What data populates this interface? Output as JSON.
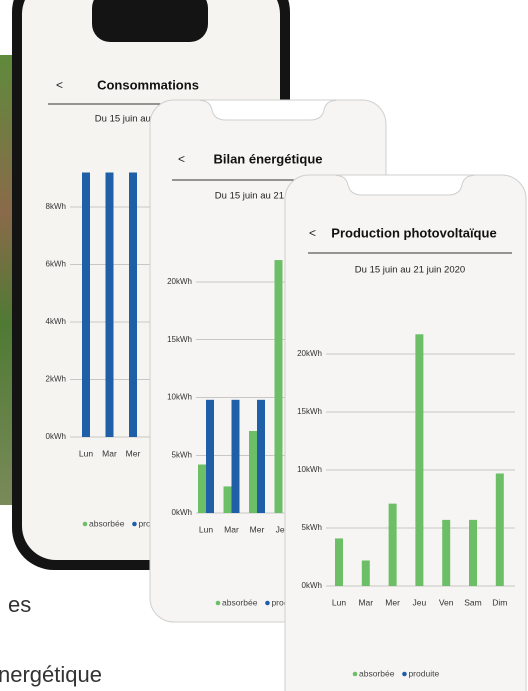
{
  "chart_data": [
    {
      "type": "bar",
      "title": "Consommations",
      "subtitle": "Du 15 juin au 21 juin 2020",
      "categories": [
        "Lun",
        "Mar",
        "Mer"
      ],
      "series": [
        {
          "name": "absorbée",
          "color": "#6dbf67",
          "values": [
            null,
            null,
            null
          ]
        },
        {
          "name": "produite",
          "color": "#1f5fa8",
          "values": [
            9.2,
            9.2,
            9.2
          ]
        }
      ],
      "ylim": [
        0,
        10
      ],
      "yticks": [
        {
          "value": 0,
          "label": "0kWh"
        },
        {
          "value": 2,
          "label": "2kWh"
        },
        {
          "value": 4,
          "label": "4kWh"
        },
        {
          "value": 6,
          "label": "6kWh"
        },
        {
          "value": 8,
          "label": "8kWh"
        }
      ],
      "grid": true
    },
    {
      "type": "bar",
      "title": "Bilan énergétique",
      "subtitle": "Du 15 juin au 21 juin 2020",
      "categories": [
        "Lun",
        "Mar",
        "Mer",
        "Jeu"
      ],
      "series": [
        {
          "name": "absorbée",
          "color": "#6dbf67",
          "values": [
            4.2,
            2.3,
            7.1,
            21.9
          ]
        },
        {
          "name": "produite",
          "color": "#1f5fa8",
          "values": [
            9.8,
            9.8,
            9.8,
            null
          ]
        }
      ],
      "ylim": [
        0,
        24
      ],
      "yticks": [
        {
          "value": 0,
          "label": "0kWh"
        },
        {
          "value": 5,
          "label": "5kWh"
        },
        {
          "value": 10,
          "label": "10kWh"
        },
        {
          "value": 15,
          "label": "15kWh"
        },
        {
          "value": 20,
          "label": "20kWh"
        }
      ],
      "grid": true
    },
    {
      "type": "bar",
      "title": "Production photovoltaïque",
      "subtitle": "Du 15 juin au 21 juin 2020",
      "categories": [
        "Lun",
        "Mar",
        "Mer",
        "Jeu",
        "Ven",
        "Sam",
        "Dim"
      ],
      "series": [
        {
          "name": "absorbée",
          "color": "#6dbf67",
          "values": [
            4.1,
            2.2,
            7.1,
            21.7,
            5.7,
            5.7,
            9.7
          ]
        },
        {
          "name": "produite",
          "color": "#1f5fa8",
          "values": [
            null,
            null,
            null,
            null,
            null,
            null,
            null
          ]
        }
      ],
      "ylim": [
        0,
        24
      ],
      "yticks": [
        {
          "value": 0,
          "label": "0kWh"
        },
        {
          "value": 5,
          "label": "5kWh"
        },
        {
          "value": 10,
          "label": "10kWh"
        },
        {
          "value": 15,
          "label": "15kWh"
        },
        {
          "value": 20,
          "label": "20kWh"
        }
      ],
      "grid": true
    }
  ],
  "background_text": [
    "es",
    "nergétique"
  ]
}
